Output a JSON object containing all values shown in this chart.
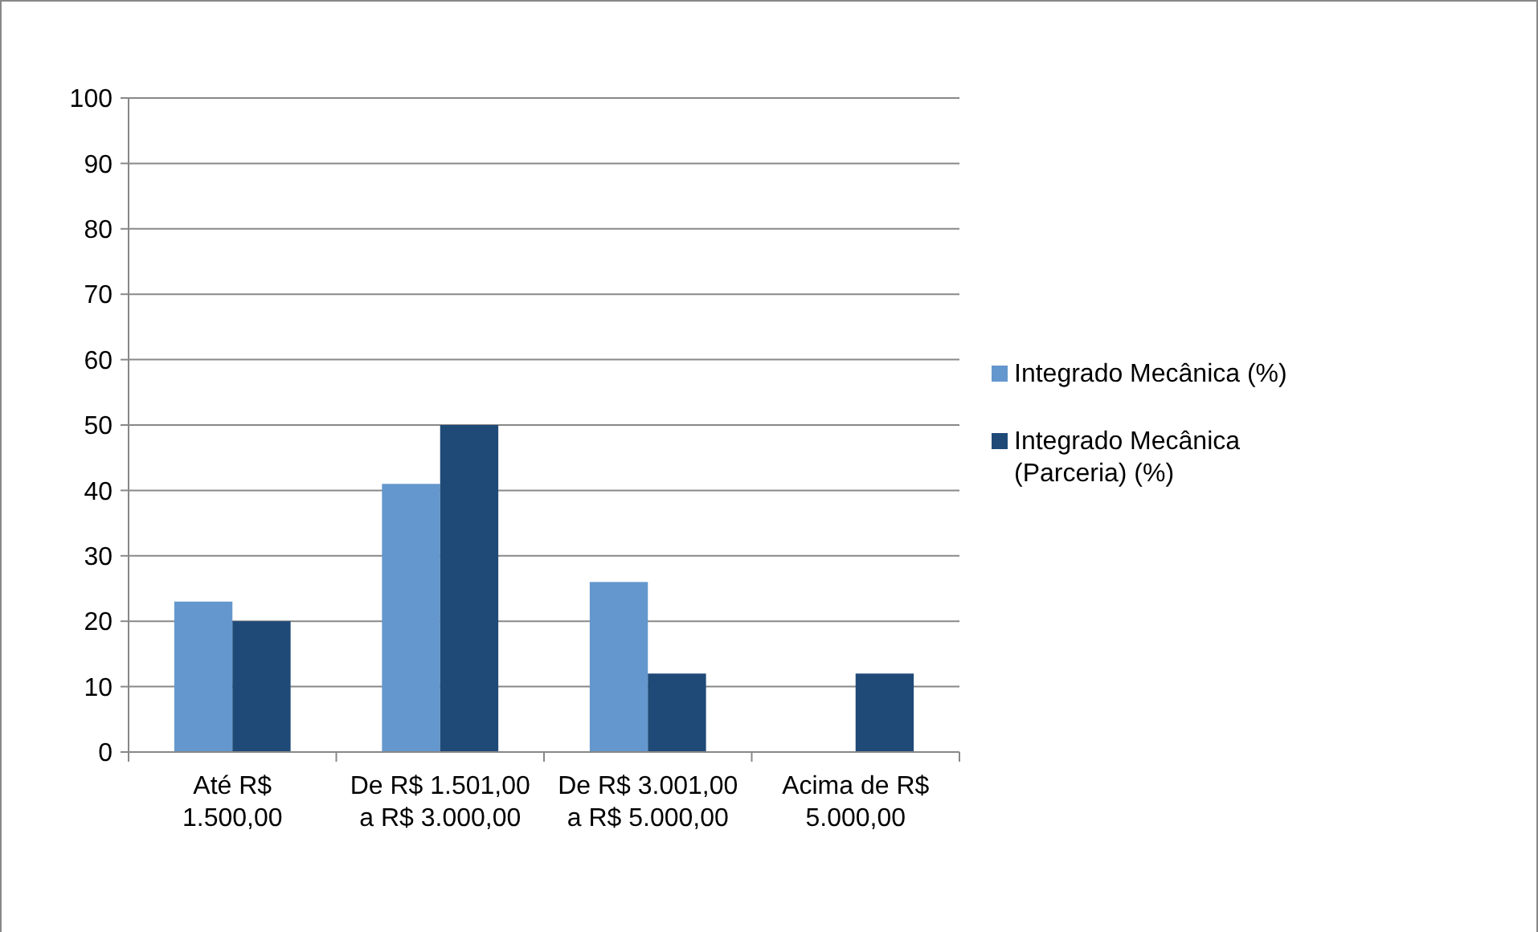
{
  "chart_data": {
    "type": "bar",
    "categories": [
      "Até R$ 1.500,00",
      "De R$ 1.501,00 a R$ 3.000,00",
      "De R$ 3.001,00 a R$ 5.000,00",
      "Acima de R$ 5.000,00"
    ],
    "series": [
      {
        "name": "Integrado Mecânica (%)",
        "color": "#6497cd",
        "values": [
          23,
          41,
          26,
          0
        ]
      },
      {
        "name": "Integrado Mecânica (Parceria) (%)",
        "color": "#1f4a78",
        "values": [
          20,
          50,
          12,
          12
        ]
      }
    ],
    "ylim": [
      0,
      100
    ],
    "yticks": [
      0,
      10,
      20,
      30,
      40,
      50,
      60,
      70,
      80,
      90,
      100
    ],
    "grid": "y",
    "legend": "right"
  }
}
